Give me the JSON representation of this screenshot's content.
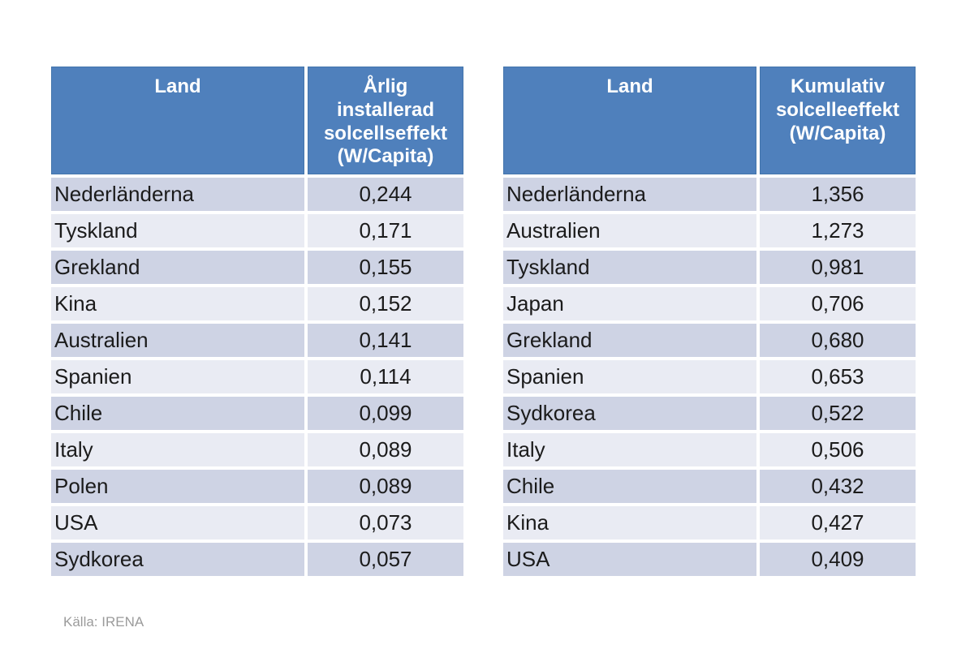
{
  "source": {
    "label": "Källa: IRENA"
  },
  "colors": {
    "header_bg": "#4F80BC",
    "header_border": "#4375AC",
    "header_text": "#FFFFFF",
    "row_dark_bg": "#CED3E4",
    "row_light_bg": "#E9EBF3",
    "body_text": "#1B1B1B",
    "source_text": "#9B9B9B",
    "page_bg": "#FFFFFF"
  },
  "tables": [
    {
      "name": "annual-installed-solar",
      "headers": [
        "Land",
        "Årlig installerad solcellseffekt (W/Capita)"
      ],
      "rows": [
        [
          "Nederländerna",
          "0,244"
        ],
        [
          "Tyskland",
          "0,171"
        ],
        [
          "Grekland",
          "0,155"
        ],
        [
          "Kina",
          "0,152"
        ],
        [
          "Australien",
          "0,141"
        ],
        [
          "Spanien",
          "0,114"
        ],
        [
          "Chile",
          "0,099"
        ],
        [
          "Italy",
          "0,089"
        ],
        [
          "Polen",
          "0,089"
        ],
        [
          "USA",
          "0,073"
        ],
        [
          "Sydkorea",
          "0,057"
        ]
      ]
    },
    {
      "name": "cumulative-solar",
      "headers": [
        "Land",
        "Kumulativ solcelleeffekt (W/Capita)"
      ],
      "rows": [
        [
          "Nederländerna",
          "1,356"
        ],
        [
          "Australien",
          "1,273"
        ],
        [
          "Tyskland",
          "0,981"
        ],
        [
          "Japan",
          "0,706"
        ],
        [
          "Grekland",
          "0,680"
        ],
        [
          "Spanien",
          "0,653"
        ],
        [
          "Sydkorea",
          "0,522"
        ],
        [
          "Italy",
          "0,506"
        ],
        [
          "Chile",
          "0,432"
        ],
        [
          "Kina",
          "0,427"
        ],
        [
          "USA",
          "0,409"
        ]
      ]
    }
  ],
  "chart_data": [
    {
      "type": "table",
      "title": "Årlig installerad solcellseffekt (W/Capita)",
      "categories": [
        "Nederländerna",
        "Tyskland",
        "Grekland",
        "Kina",
        "Australien",
        "Spanien",
        "Chile",
        "Italy",
        "Polen",
        "USA",
        "Sydkorea"
      ],
      "values": [
        0.244,
        0.171,
        0.155,
        0.152,
        0.141,
        0.114,
        0.099,
        0.089,
        0.089,
        0.073,
        0.057
      ]
    },
    {
      "type": "table",
      "title": "Kumulativ solcelleeffekt (W/Capita)",
      "categories": [
        "Nederländerna",
        "Australien",
        "Tyskland",
        "Japan",
        "Grekland",
        "Spanien",
        "Sydkorea",
        "Italy",
        "Chile",
        "Kina",
        "USA"
      ],
      "values": [
        1.356,
        1.273,
        0.981,
        0.706,
        0.68,
        0.653,
        0.522,
        0.506,
        0.432,
        0.427,
        0.409
      ]
    }
  ]
}
